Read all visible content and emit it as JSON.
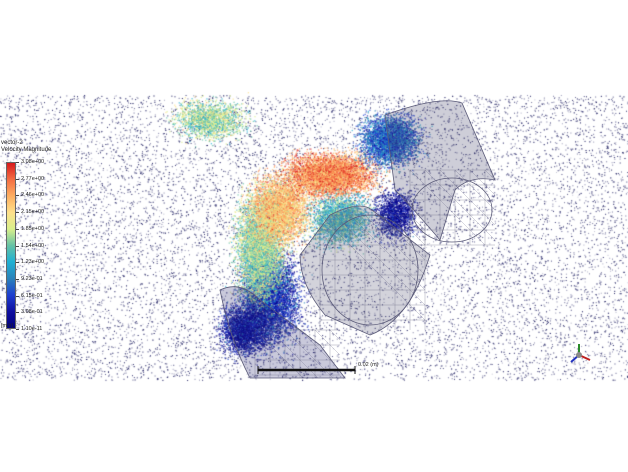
{
  "legend": {
    "title_line1": "vector-2",
    "title_line2": "Velocity Magnitude",
    "ticks": [
      "3.08e+00",
      "2.77e+00",
      "2.46e+00",
      "2.15e+00",
      "1.85e+00",
      "1.54e+00",
      "1.23e+00",
      "9.23e-01",
      "6.15e-01",
      "3.08e-01",
      "1.10e-11"
    ],
    "unit": "[m/s]",
    "colormap": [
      "#d7191c",
      "#f46d43",
      "#fdae61",
      "#fee08b",
      "#d9ef8b",
      "#66c2a5",
      "#1fb0d4",
      "#2b83ba",
      "#1f3fcf",
      "#1010a0",
      "#000080"
    ]
  },
  "scale_bar": {
    "label": "0.02 (m)"
  },
  "colors": {
    "background": "#ffffff",
    "mesh": "#5a5a78",
    "particle_dark": "#1a1a5e"
  },
  "icons": {
    "axis_triad": "axis-triad-icon"
  }
}
